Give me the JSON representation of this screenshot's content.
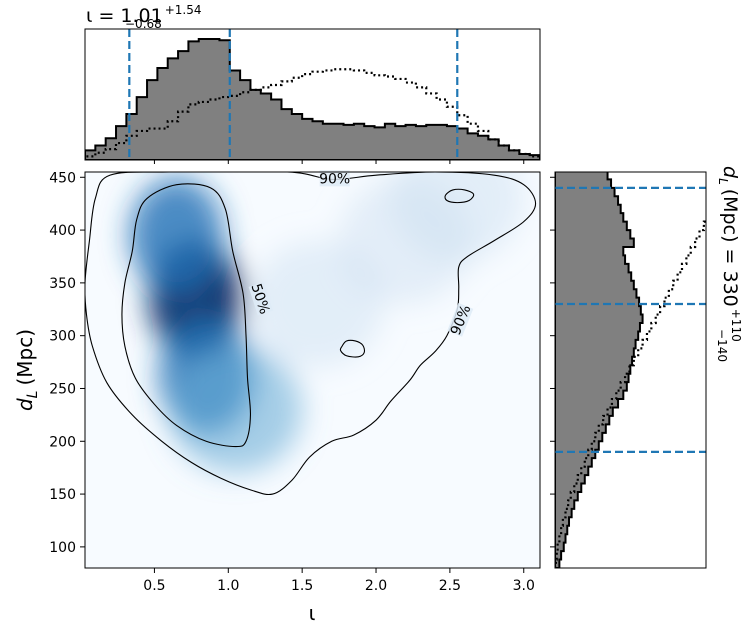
{
  "chart_data": [
    {
      "type": "heatmap",
      "panel": "joint",
      "xlabel": "ι",
      "ylabel_main": "d",
      "ylabel_sub": "L",
      "ylabel_unit": "(Mpc)",
      "xlim": [
        0.03,
        3.11
      ],
      "ylim": [
        80,
        455
      ],
      "xticks": [
        0.5,
        1.0,
        1.5,
        2.0,
        2.5,
        3.0
      ],
      "xtick_labels": [
        "0.5",
        "1.0",
        "1.5",
        "2.0",
        "2.5",
        "3.0"
      ],
      "yticks": [
        100,
        150,
        200,
        250,
        300,
        350,
        400,
        450
      ],
      "ytick_labels": [
        "100",
        "150",
        "200",
        "250",
        "300",
        "350",
        "400",
        "450"
      ],
      "colormap": "Blues",
      "density_peaks": [
        {
          "x": 0.78,
          "y": 335,
          "weight": 1.0
        },
        {
          "x": 0.85,
          "y": 262,
          "weight": 0.85
        },
        {
          "x": 0.65,
          "y": 395,
          "weight": 0.75
        },
        {
          "x": 1.05,
          "y": 230,
          "weight": 0.4
        },
        {
          "x": 1.6,
          "y": 330,
          "weight": 0.12
        },
        {
          "x": 2.2,
          "y": 390,
          "weight": 0.1
        },
        {
          "x": 2.55,
          "y": 430,
          "weight": 0.12
        }
      ],
      "contours": [
        {
          "level_label": "50%",
          "points": [
            [
              0.35,
              380
            ],
            [
              0.3,
              350
            ],
            [
              0.28,
              320
            ],
            [
              0.3,
              290
            ],
            [
              0.37,
              260
            ],
            [
              0.5,
              235
            ],
            [
              0.65,
              215
            ],
            [
              0.85,
              200
            ],
            [
              1.05,
              195
            ],
            [
              1.12,
              200
            ],
            [
              1.15,
              225
            ],
            [
              1.13,
              260
            ],
            [
              1.12,
              300
            ],
            [
              1.1,
              340
            ],
            [
              1.03,
              380
            ],
            [
              0.98,
              420
            ],
            [
              0.88,
              440
            ],
            [
              0.65,
              443
            ],
            [
              0.45,
              430
            ],
            [
              0.38,
              410
            ]
          ]
        },
        {
          "level_label": "90%",
          "points": [
            [
              0.03,
              350
            ],
            [
              0.06,
              390
            ],
            [
              0.1,
              430
            ],
            [
              0.2,
              452
            ],
            [
              0.6,
              455
            ],
            [
              1.4,
              455
            ],
            [
              1.7,
              448
            ],
            [
              2.0,
              452
            ],
            [
              2.4,
              455
            ],
            [
              2.8,
              452
            ],
            [
              3.0,
              443
            ],
            [
              3.08,
              425
            ],
            [
              3.0,
              408
            ],
            [
              2.8,
              390
            ],
            [
              2.62,
              375
            ],
            [
              2.56,
              365
            ],
            [
              2.56,
              345
            ],
            [
              2.55,
              325
            ],
            [
              2.48,
              300
            ],
            [
              2.4,
              285
            ],
            [
              2.3,
              272
            ],
            [
              2.23,
              258
            ],
            [
              2.1,
              238
            ],
            [
              2.0,
              220
            ],
            [
              1.85,
              206
            ],
            [
              1.7,
              200
            ],
            [
              1.55,
              185
            ],
            [
              1.43,
              163
            ],
            [
              1.3,
              150
            ],
            [
              1.15,
              154
            ],
            [
              0.95,
              165
            ],
            [
              0.75,
              180
            ],
            [
              0.55,
              200
            ],
            [
              0.35,
              225
            ],
            [
              0.18,
              255
            ],
            [
              0.08,
              290
            ],
            [
              0.04,
              320
            ]
          ]
        },
        {
          "level_label": "",
          "points": [
            [
              1.77,
              290
            ],
            [
              1.8,
              295
            ],
            [
              1.86,
              295
            ],
            [
              1.91,
              291
            ],
            [
              1.92,
              284
            ],
            [
              1.88,
              280
            ],
            [
              1.8,
              281
            ],
            [
              1.76,
              286
            ]
          ]
        },
        {
          "level_label": "",
          "points": [
            [
              2.47,
              433
            ],
            [
              2.52,
              438
            ],
            [
              2.6,
              438
            ],
            [
              2.66,
              434
            ],
            [
              2.63,
              428
            ],
            [
              2.55,
              426
            ],
            [
              2.48,
              428
            ]
          ]
        }
      ],
      "contour_labels": [
        {
          "text": "50%",
          "x": 1.22,
          "y": 335,
          "rotation": 72
        },
        {
          "text": "90%",
          "x": 2.57,
          "y": 315,
          "rotation": -68
        },
        {
          "text": "90%",
          "x": 1.72,
          "y": 449,
          "rotation": 0
        }
      ]
    },
    {
      "type": "histogram",
      "panel": "top_marginal",
      "title_prefix": "ι = 1.01",
      "title_sup": "+1.54",
      "title_sub": "−0.68",
      "bin_edges": [
        0.03,
        0.1,
        0.17,
        0.24,
        0.31,
        0.38,
        0.45,
        0.52,
        0.59,
        0.66,
        0.73,
        0.8,
        0.87,
        0.94,
        1.01,
        1.08,
        1.15,
        1.22,
        1.29,
        1.36,
        1.43,
        1.5,
        1.57,
        1.64,
        1.71,
        1.78,
        1.85,
        1.92,
        1.99,
        2.06,
        2.13,
        2.2,
        2.27,
        2.34,
        2.41,
        2.48,
        2.55,
        2.62,
        2.69,
        2.76,
        2.83,
        2.9,
        2.97,
        3.04,
        3.11
      ],
      "filled_heights": [
        0.08,
        0.12,
        0.18,
        0.28,
        0.38,
        0.52,
        0.66,
        0.76,
        0.84,
        0.9,
        0.98,
        1.0,
        1.0,
        0.99,
        0.74,
        0.66,
        0.58,
        0.55,
        0.5,
        0.42,
        0.38,
        0.34,
        0.32,
        0.3,
        0.3,
        0.29,
        0.3,
        0.28,
        0.27,
        0.3,
        0.28,
        0.29,
        0.28,
        0.29,
        0.29,
        0.28,
        0.26,
        0.22,
        0.2,
        0.17,
        0.12,
        0.08,
        0.05,
        0.04
      ],
      "prior_heights": [
        0.03,
        0.06,
        0.09,
        0.14,
        0.2,
        0.24,
        0.26,
        0.26,
        0.32,
        0.4,
        0.46,
        0.48,
        0.5,
        0.52,
        0.53,
        0.56,
        0.58,
        0.6,
        0.62,
        0.65,
        0.68,
        0.71,
        0.73,
        0.74,
        0.75,
        0.75,
        0.74,
        0.72,
        0.7,
        0.69,
        0.67,
        0.64,
        0.6,
        0.55,
        0.5,
        0.44,
        0.37,
        0.3,
        0.24,
        0.17,
        0.12,
        0.08,
        0.05,
        0.03
      ],
      "quantile_lines": [
        0.33,
        1.01,
        2.55
      ],
      "fill_color": "#808080",
      "line_color": "#1f77b4"
    },
    {
      "type": "histogram",
      "panel": "right_marginal",
      "orientation": "horizontal",
      "title_main": "d",
      "title_sub_L": "L",
      "title_mid": "(Mpc) = 330",
      "title_sup": "+110",
      "title_sub": "−140",
      "bin_edges": [
        80,
        88,
        96,
        104,
        112,
        120,
        128,
        136,
        144,
        152,
        160,
        168,
        176,
        184,
        192,
        200,
        208,
        216,
        224,
        232,
        240,
        248,
        256,
        264,
        272,
        280,
        288,
        296,
        304,
        312,
        320,
        328,
        336,
        344,
        352,
        360,
        368,
        376,
        384,
        392,
        400,
        408,
        416,
        424,
        432,
        440,
        448,
        456
      ],
      "filled_lengths": [
        0.05,
        0.07,
        0.1,
        0.12,
        0.14,
        0.16,
        0.19,
        0.22,
        0.26,
        0.3,
        0.34,
        0.38,
        0.42,
        0.46,
        0.5,
        0.54,
        0.58,
        0.62,
        0.66,
        0.72,
        0.78,
        0.82,
        0.84,
        0.86,
        0.88,
        0.9,
        0.92,
        0.95,
        0.97,
        1.0,
        0.98,
        0.96,
        0.93,
        0.9,
        0.87,
        0.84,
        0.8,
        0.78,
        0.9,
        0.86,
        0.82,
        0.78,
        0.75,
        0.72,
        0.68,
        0.64,
        0.6
      ],
      "prior_lengths": [
        0.01,
        0.02,
        0.03,
        0.05,
        0.07,
        0.09,
        0.12,
        0.15,
        0.18,
        0.22,
        0.26,
        0.3,
        0.34,
        0.38,
        0.42,
        0.46,
        0.5,
        0.55,
        0.6,
        0.65,
        0.7,
        0.75,
        0.8,
        0.85,
        0.9,
        0.95,
        1.0,
        1.05,
        1.1,
        1.15,
        1.2,
        1.25,
        1.3,
        1.35,
        1.4,
        1.45,
        1.5,
        1.55,
        1.6,
        1.65,
        1.7,
        1.75,
        1.8,
        1.85,
        1.9,
        1.95,
        2.0
      ],
      "quantile_lines": [
        190,
        330,
        440
      ],
      "fill_color": "#808080",
      "line_color": "#1f77b4"
    }
  ]
}
